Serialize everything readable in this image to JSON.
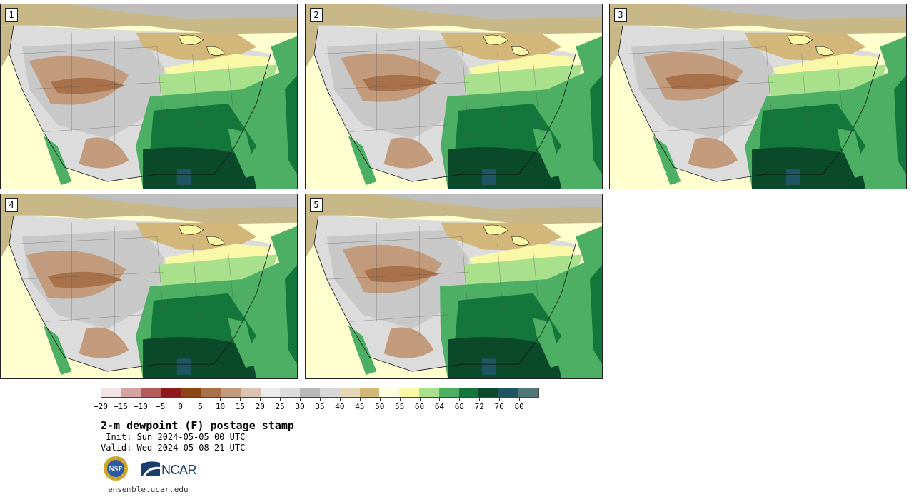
{
  "panels": [
    {
      "label": "1"
    },
    {
      "label": "2"
    },
    {
      "label": "3"
    },
    {
      "label": "4"
    },
    {
      "label": "5"
    }
  ],
  "colorbar": {
    "colors": [
      "#f2e4e4",
      "#d6a3a3",
      "#b35c5c",
      "#8c1a1a",
      "#8b4513",
      "#a8714a",
      "#c29a7c",
      "#dcc2b0",
      "#ececec",
      "#dcdcdc",
      "#b8b8b8",
      "#d8d8d8",
      "#e6d8b6",
      "#d2b67a",
      "#ffffe0",
      "#f8f8a6",
      "#a8e08c",
      "#4caf63",
      "#13773c",
      "#0a4a2a",
      "#1f5560",
      "#507878"
    ],
    "tick_labels": [
      "−20",
      "−15",
      "−10",
      "−5",
      "0",
      "5",
      "10",
      "15",
      "20",
      "25",
      "30",
      "35",
      "40",
      "45",
      "50",
      "55",
      "60",
      "64",
      "68",
      "72",
      "76",
      "80"
    ]
  },
  "title": "2-m dewpoint (F) postage stamp",
  "init": " Init: Sun 2024-05-05 00 UTC",
  "valid": "Valid: Wed 2024-05-08 21 UTC",
  "logos": {
    "nsf": "NSF",
    "ncar": "NCAR"
  },
  "footer": "ensemble.ucar.edu"
}
